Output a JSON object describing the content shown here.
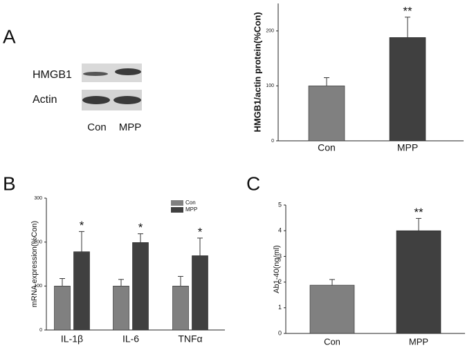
{
  "panel_labels": [
    "A",
    "B",
    "C"
  ],
  "blot": {
    "rows": [
      "HMGB1",
      "Actin"
    ],
    "lanes": [
      "Con",
      "MPP"
    ]
  },
  "chart_data": [
    {
      "type": "bar",
      "y_label": "HMGB1/actin protein(%Con)",
      "categories": [
        "Con",
        "MPP"
      ],
      "values": [
        100,
        188
      ],
      "errors": [
        15,
        37
      ],
      "colors": [
        "#808080",
        "#404040"
      ],
      "annotations": [
        null,
        "**"
      ],
      "ylim": [
        0,
        250
      ],
      "yticks": [
        0,
        100,
        200
      ]
    },
    {
      "type": "bar",
      "y_label": "mRNA expression(%Con)",
      "categories": [
        "IL-1β",
        "IL-6",
        "TNFα"
      ],
      "series": [
        {
          "name": "Con",
          "color": "#808080",
          "values": [
            100,
            100,
            100
          ],
          "errors": [
            17,
            15,
            22
          ]
        },
        {
          "name": "MPP",
          "color": "#404040",
          "values": [
            178,
            199,
            169
          ],
          "errors": [
            46,
            20,
            40
          ]
        }
      ],
      "annotations": [
        "*",
        "*",
        "*"
      ],
      "legend": "top-right",
      "ylim": [
        0,
        300
      ],
      "yticks": [
        0,
        100,
        200,
        300
      ]
    },
    {
      "type": "bar",
      "y_label": "Ab1-40(ng/ml)",
      "categories": [
        "Con",
        "MPP"
      ],
      "values": [
        1.88,
        4.0
      ],
      "errors": [
        0.22,
        0.48
      ],
      "colors": [
        "#808080",
        "#404040"
      ],
      "annotations": [
        null,
        "**"
      ],
      "ylim": [
        0,
        5
      ],
      "yticks": [
        0,
        1,
        2,
        3,
        4,
        5
      ]
    }
  ]
}
